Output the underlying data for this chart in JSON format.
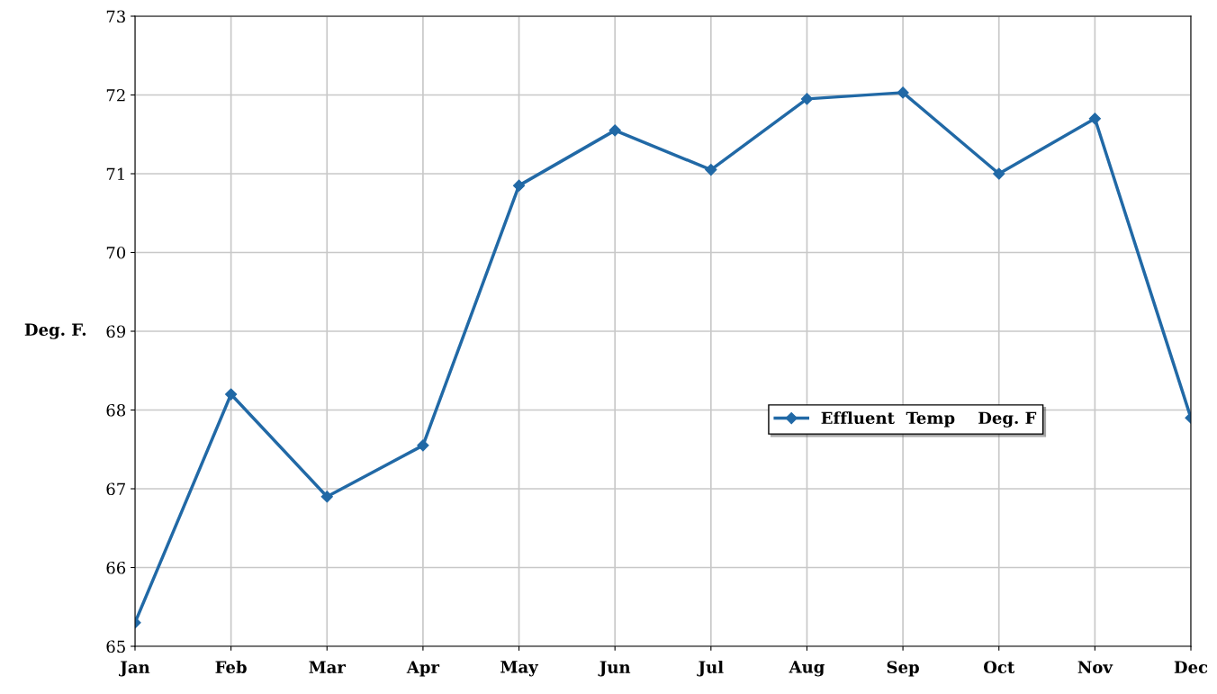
{
  "chart_data": {
    "type": "line",
    "ylabel": "Deg. F.",
    "categories": [
      "Jan",
      "Feb",
      "Mar",
      "Apr",
      "May",
      "Jun",
      "Jul",
      "Aug",
      "Sep",
      "Oct",
      "Nov",
      "Dec"
    ],
    "series": [
      {
        "name": "Effluent  Temp    Deg. F",
        "color": "#2169a6",
        "values": [
          65.3,
          68.2,
          66.9,
          67.55,
          70.85,
          71.55,
          71.05,
          71.95,
          72.03,
          71.0,
          71.7,
          67.9
        ]
      }
    ],
    "ylim": [
      65,
      73
    ],
    "yticks": [
      65,
      66,
      67,
      68,
      69,
      70,
      71,
      72,
      73
    ],
    "grid": true,
    "legend": "center right",
    "marker": "diamond",
    "line_style": "solid"
  }
}
